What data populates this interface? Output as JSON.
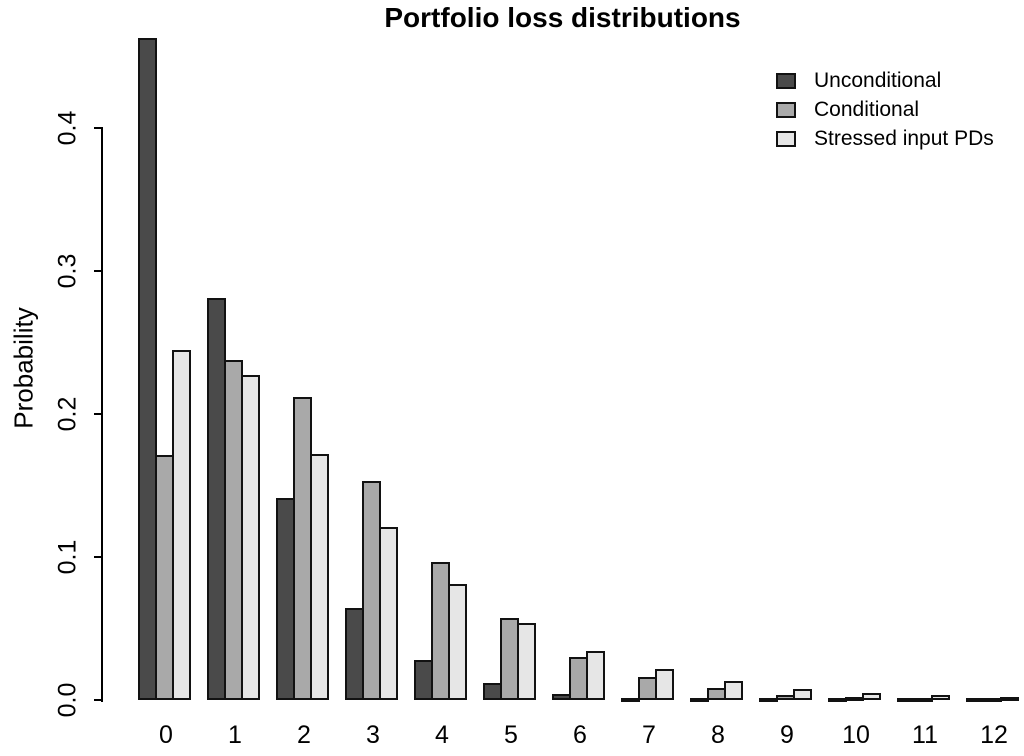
{
  "chart_data": {
    "type": "bar",
    "title": "Portfolio loss distributions",
    "xlabel": "",
    "ylabel": "Probability",
    "categories": [
      "0",
      "1",
      "2",
      "3",
      "4",
      "5",
      "6",
      "7",
      "8",
      "9",
      "10",
      "11",
      "12"
    ],
    "series": [
      {
        "name": "Unconditional",
        "color": "#4a4a4a",
        "values": [
          0.463,
          0.281,
          0.141,
          0.064,
          0.028,
          0.012,
          0.004,
          0.0015,
          0.0007,
          0.0004,
          0.0002,
          0.0001,
          5e-05
        ]
      },
      {
        "name": "Conditional",
        "color": "#a9a9a9",
        "values": [
          0.171,
          0.238,
          0.212,
          0.153,
          0.0965,
          0.057,
          0.03,
          0.016,
          0.0085,
          0.0035,
          0.002,
          0.0013,
          0.0008
        ]
      },
      {
        "name": "Stressed input PDs",
        "color": "#e6e6e6",
        "values": [
          0.245,
          0.227,
          0.172,
          0.121,
          0.081,
          0.054,
          0.034,
          0.022,
          0.0135,
          0.008,
          0.005,
          0.0033,
          0.002
        ]
      }
    ],
    "ylim": [
      0,
      0.4
    ],
    "yticks": [
      "0.0",
      "0.1",
      "0.2",
      "0.3",
      "0.4"
    ],
    "legend_position": "top-right",
    "grid": false
  }
}
